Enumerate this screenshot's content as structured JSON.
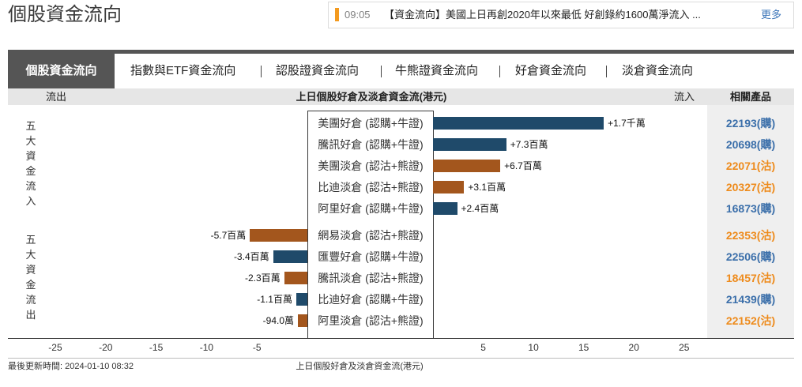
{
  "page": {
    "title": "個股資金流向"
  },
  "news": {
    "time": "09:05",
    "headline": "【資金流向】美國上日再創2020年以來最低 好創錄約1600萬淨流入 ...",
    "more_label": "更多"
  },
  "tabs": [
    {
      "label": "個股資金流向",
      "active": true
    },
    {
      "label": "指數與ETF資金流向",
      "active": false
    },
    {
      "label": "認股證資金流向",
      "active": false
    },
    {
      "label": "牛熊證資金流向",
      "active": false
    },
    {
      "label": "好倉資金流向",
      "active": false
    },
    {
      "label": "淡倉資金流向",
      "active": false
    }
  ],
  "product_column": {
    "header": "相關產品"
  },
  "colors": {
    "news_accent": "#f39a1f",
    "tab_bar": "#555555",
    "link": "#3a74b8"
  },
  "chart_data": {
    "type": "bar",
    "orientation": "horizontal",
    "title": "上日個股好倉及淡倉資金流(港元)",
    "xlabel": "上日個股好倉及淡倉資金流(港元)",
    "left_label": "流出",
    "right_label": "流入",
    "xlim_outflow": [
      -29.7,
      0
    ],
    "xlim_inflow": [
      0,
      27.3
    ],
    "xticks": [
      -25,
      -20,
      -15,
      -10,
      -5,
      5,
      10,
      15,
      20,
      25
    ],
    "grid": false,
    "groups": [
      {
        "label": "五大資金流入",
        "rows": [
          {
            "category": "美團好倉 (認購+牛證)",
            "value": 17,
            "value_label": "+1.7千萬",
            "color": "#1f4a6a",
            "product": "22193(購)",
            "product_color": "#3b6faa"
          },
          {
            "category": "騰訊好倉 (認購+牛證)",
            "value": 7.3,
            "value_label": "+7.3百萬",
            "color": "#1f4a6a",
            "product": "20698(購)",
            "product_color": "#3b6faa"
          },
          {
            "category": "美團淡倉 (認沽+熊證)",
            "value": 6.7,
            "value_label": "+6.7百萬",
            "color": "#a3561d",
            "product": "22071(沽)",
            "product_color": "#ee8b1c"
          },
          {
            "category": "比迪淡倉 (認沽+熊證)",
            "value": 3.1,
            "value_label": "+3.1百萬",
            "color": "#a3561d",
            "product": "20327(沽)",
            "product_color": "#ee8b1c"
          },
          {
            "category": "阿里好倉 (認購+牛證)",
            "value": 2.4,
            "value_label": "+2.4百萬",
            "color": "#1f4a6a",
            "product": "16873(購)",
            "product_color": "#3b6faa"
          }
        ]
      },
      {
        "label": "五大資金流出",
        "rows": [
          {
            "category": "網易淡倉 (認沽+熊證)",
            "value": -5.7,
            "value_label": "-5.7百萬",
            "color": "#a3561d",
            "product": "22353(沽)",
            "product_color": "#ee8b1c"
          },
          {
            "category": "匯豐好倉 (認購+牛證)",
            "value": -3.4,
            "value_label": "-3.4百萬",
            "color": "#1f4a6a",
            "product": "22506(購)",
            "product_color": "#3b6faa"
          },
          {
            "category": "騰訊淡倉 (認沽+熊證)",
            "value": -2.3,
            "value_label": "-2.3百萬",
            "color": "#a3561d",
            "product": "18457(沽)",
            "product_color": "#ee8b1c"
          },
          {
            "category": "比迪好倉 (認購+牛證)",
            "value": -1.1,
            "value_label": "-1.1百萬",
            "color": "#1f4a6a",
            "product": "21439(購)",
            "product_color": "#3b6faa"
          },
          {
            "category": "阿里淡倉 (認沽+熊證)",
            "value": -0.94,
            "value_label": "-94.0萬",
            "color": "#a3561d",
            "product": "22152(沽)",
            "product_color": "#ee8b1c"
          }
        ]
      }
    ]
  },
  "footer": {
    "updated": "最後更新時間: 2024-01-10 08:32"
  }
}
